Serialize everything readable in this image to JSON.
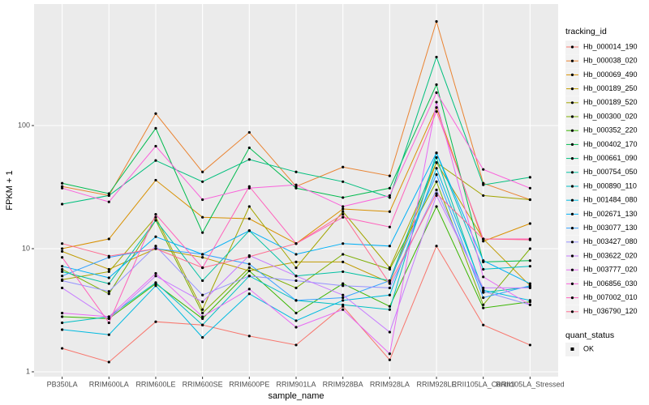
{
  "chart_data": {
    "type": "line",
    "x_label": "sample_name",
    "y_label": "FPKM + 1",
    "log_y": true,
    "grid": true,
    "categories": [
      "PB350LA",
      "RRIM600LA",
      "RRIM600LE",
      "RRIM600SE",
      "RRIM600PE",
      "RRIM901LA",
      "RRIM928BA",
      "RRIM928LA",
      "RRIM928LE",
      "RRII105LA_Control",
      "RRII105LA_Stressed"
    ],
    "ylim": [
      0.913,
      970
    ],
    "yticks": [
      1,
      10,
      100
    ],
    "legend_title": "tracking_id",
    "legend_position": "right",
    "point_legend": {
      "title": "quant_status",
      "labels": [
        "OK"
      ],
      "color": "#000000"
    },
    "series": [
      {
        "name": "Hb_000014_190",
        "color": "#F8766D",
        "values": [
          1.55,
          1.2,
          2.55,
          2.4,
          1.95,
          1.65,
          3.4,
          1.25,
          10.5,
          2.4,
          1.65
        ]
      },
      {
        "name": "Hb_000038_020",
        "color": "#EA8331",
        "values": [
          32,
          27,
          125,
          42,
          88,
          32,
          46,
          39,
          700,
          34,
          25
        ]
      },
      {
        "name": "Hb_000069_490",
        "color": "#D89000",
        "values": [
          10,
          12,
          36,
          18,
          17.5,
          11,
          21,
          20,
          140,
          11.5,
          16
        ]
      },
      {
        "name": "Hb_000189_250",
        "color": "#C09B00",
        "values": [
          9.5,
          6.8,
          10,
          8.5,
          6.6,
          7.8,
          7.8,
          5.3,
          50,
          12,
          5
        ]
      },
      {
        "name": "Hb_000189_520",
        "color": "#A3A500",
        "values": [
          5.6,
          6.5,
          18,
          3.2,
          22,
          7,
          20,
          7,
          50,
          27,
          25
        ]
      },
      {
        "name": "Hb_000300_020",
        "color": "#7CAE00",
        "values": [
          6.8,
          4.3,
          17,
          3,
          7,
          4.8,
          9,
          6.8,
          35,
          3.5,
          10
        ]
      },
      {
        "name": "Hb_000352_220",
        "color": "#39B600",
        "values": [
          2.8,
          2.7,
          5.2,
          2.7,
          6.6,
          3,
          5.2,
          3.4,
          22,
          3.3,
          3.7
        ]
      },
      {
        "name": "Hb_000402_170",
        "color": "#00BB4E",
        "values": [
          34,
          28,
          95,
          13.5,
          66,
          31,
          26,
          31,
          215,
          7.8,
          8
        ]
      },
      {
        "name": "Hb_000661_090",
        "color": "#00BF7D",
        "values": [
          23,
          27,
          52,
          35,
          53,
          42,
          35,
          26,
          360,
          33,
          38
        ]
      },
      {
        "name": "Hb_000754_050",
        "color": "#00C1A3",
        "values": [
          6.5,
          5.2,
          17,
          5.5,
          14,
          6,
          6.5,
          5.5,
          55,
          4.4,
          4.9
        ]
      },
      {
        "name": "Hb_000890_110",
        "color": "#00BFC4",
        "values": [
          2.5,
          2.8,
          5.3,
          2.4,
          6,
          3.8,
          3.5,
          3.2,
          60,
          6.8,
          7.2
        ]
      },
      {
        "name": "Hb_001484_080",
        "color": "#00BAE0",
        "values": [
          2.2,
          2,
          5,
          1.9,
          4.3,
          2.6,
          3.8,
          4.2,
          45,
          4.6,
          3.8
        ]
      },
      {
        "name": "Hb_002671_130",
        "color": "#00B0F6",
        "values": [
          7.2,
          5.8,
          12.5,
          9,
          14,
          9,
          11,
          10.5,
          60,
          8,
          5.2
        ]
      },
      {
        "name": "Hb_003077_130",
        "color": "#35A2FF",
        "values": [
          6,
          8.5,
          10,
          9,
          7.5,
          3.8,
          4,
          5.5,
          40,
          4,
          5
        ]
      },
      {
        "name": "Hb_003427_080",
        "color": "#9590FF",
        "values": [
          5.5,
          4.5,
          10.5,
          4.2,
          6,
          5.5,
          5,
          4.8,
          30,
          4.5,
          3.5
        ]
      },
      {
        "name": "Hb_003622_020",
        "color": "#C77CFF",
        "values": [
          4.8,
          2.7,
          6,
          3.7,
          8.8,
          6,
          4.2,
          2.1,
          27,
          4.8,
          4.8
        ]
      },
      {
        "name": "Hb_003777_020",
        "color": "#E76BF3",
        "values": [
          3,
          2.8,
          6.3,
          2.8,
          4.7,
          2.3,
          3.2,
          1.4,
          155,
          5.9,
          3.5
        ]
      },
      {
        "name": "Hb_006856_030",
        "color": "#FA62DB",
        "values": [
          31,
          24,
          68,
          25,
          31,
          33,
          22,
          27,
          185,
          44,
          31
        ]
      },
      {
        "name": "Hb_007002_010",
        "color": "#FF62BC",
        "values": [
          8.5,
          2.5,
          19,
          7,
          32,
          11,
          18,
          15,
          130,
          12,
          12
        ]
      },
      {
        "name": "Hb_036790_120",
        "color": "#FF6C91",
        "values": [
          11,
          8.7,
          10,
          7,
          8.6,
          11,
          19,
          5.2,
          28,
          12,
          11.8
        ]
      }
    ]
  }
}
